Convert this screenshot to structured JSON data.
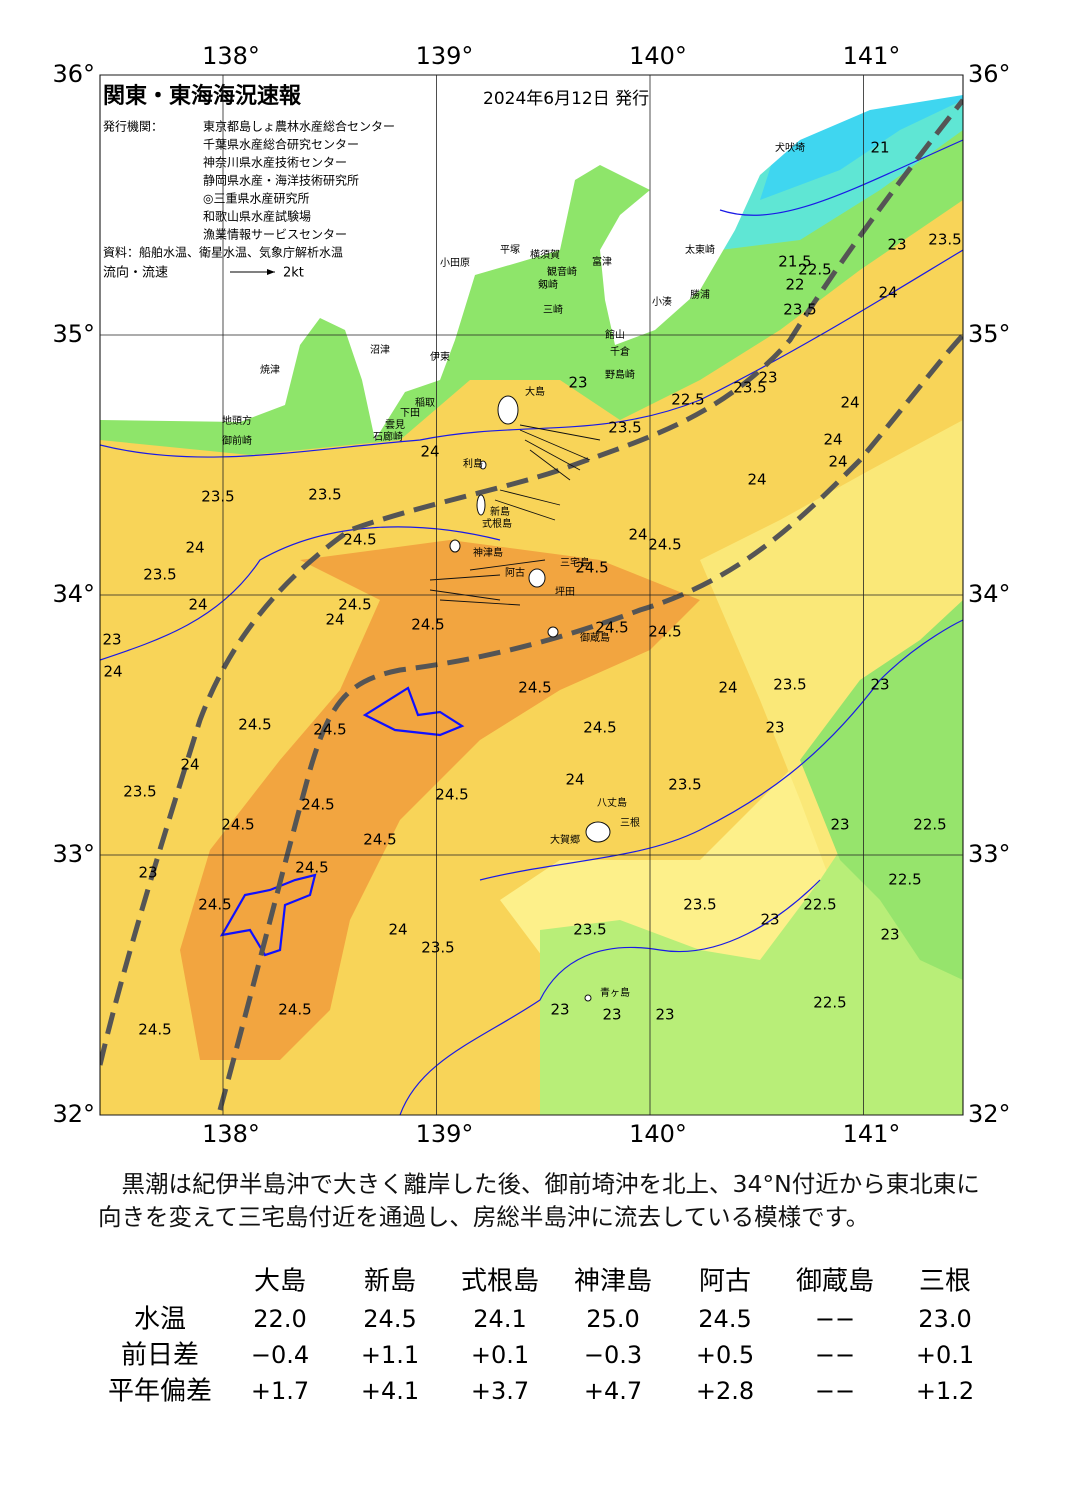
{
  "header": {
    "title": "関東・東海海況速報",
    "date": "2024年6月12日 発行",
    "issuer_label": "発行機関：",
    "issuers": [
      "東京都島しょ農林水産総合センター",
      "千葉県水産総合研究センター",
      "神奈川県水産技術センター",
      "静岡県水産・海洋技術研究所",
      "◎三重県水産研究所",
      "和歌山県水産試験場",
      "漁業情報サービスセンター"
    ],
    "sources": "資料：船舶水温、衛星水温、気象庁解析水温",
    "current_legend": {
      "label": "流向・流速",
      "unit": "2kt"
    }
  },
  "map": {
    "lon_ticks": [
      {
        "value": 138,
        "label": "138°"
      },
      {
        "value": 139,
        "label": "139°"
      },
      {
        "value": 140,
        "label": "140°"
      },
      {
        "value": 141,
        "label": "141°"
      }
    ],
    "lat_ticks": [
      {
        "value": 32,
        "label": "32°"
      },
      {
        "value": 33,
        "label": "33°"
      },
      {
        "value": 34,
        "label": "34°"
      },
      {
        "value": 35,
        "label": "35°"
      },
      {
        "value": 36,
        "label": "36°"
      }
    ],
    "place_names": [
      "犬吠埼",
      "太東崎",
      "勝浦",
      "小湊",
      "館山",
      "千倉",
      "野島崎",
      "富津",
      "観音崎",
      "剱崎",
      "三崎",
      "横須賀",
      "平塚",
      "小田原",
      "伊東",
      "稲取",
      "下田",
      "雲見",
      "石廊崎",
      "沼津",
      "焼津",
      "地頭方",
      "御前崎",
      "大島",
      "利島",
      "新島",
      "式根島",
      "神津島",
      "三宅島",
      "阿古",
      "坪田",
      "御蔵島",
      "八丈島",
      "三根",
      "大賀郷",
      "青ヶ島"
    ],
    "contour_labels": [
      "21",
      "21.5",
      "22",
      "22.5",
      "23",
      "23.5",
      "24",
      "23.5",
      "23.5",
      "22.5",
      "23",
      "24",
      "24",
      "24",
      "24",
      "23.5",
      "23",
      "24",
      "23.5",
      "23.5",
      "24.5",
      "24",
      "23.5",
      "24",
      "23",
      "24",
      "24.5",
      "24",
      "24.5",
      "24",
      "24.5",
      "24.5",
      "24.5",
      "24.5",
      "24.5",
      "24",
      "23.5",
      "23",
      "23",
      "24.5",
      "24.5",
      "24.5",
      "24",
      "23.5",
      "24",
      "23.5",
      "24.5",
      "24.5",
      "24.5",
      "24.5",
      "23",
      "22.5",
      "22.5",
      "23",
      "24.5",
      "24.5",
      "23.5",
      "23",
      "22.5",
      "24",
      "23.5",
      "23.5",
      "23",
      "23",
      "23",
      "23",
      "22.5",
      "24.5",
      "24.5"
    ]
  },
  "summary": "　黒潮は紀伊半島沖で大きく離岸した後、御前埼沖を北上、34°N付近から東北東に向きを変えて三宅島付近を通過し、房総半島沖に流去している模様です。",
  "table": {
    "columns": [
      "大島",
      "新島",
      "式根島",
      "神津島",
      "阿古",
      "御蔵島",
      "三根"
    ],
    "rows": [
      {
        "label": "水温",
        "values": [
          "22.0",
          "24.5",
          "24.1",
          "25.0",
          "24.5",
          "−−",
          "23.0"
        ]
      },
      {
        "label": "前日差",
        "values": [
          "−0.4",
          "+1.1",
          "+0.1",
          "−0.3",
          "+0.5",
          "−−",
          "+0.1"
        ]
      },
      {
        "label": "平年偏差",
        "values": [
          "+1.7",
          "+4.1",
          "+3.7",
          "+4.7",
          "+2.8",
          "−−",
          "+1.2"
        ]
      }
    ]
  }
}
